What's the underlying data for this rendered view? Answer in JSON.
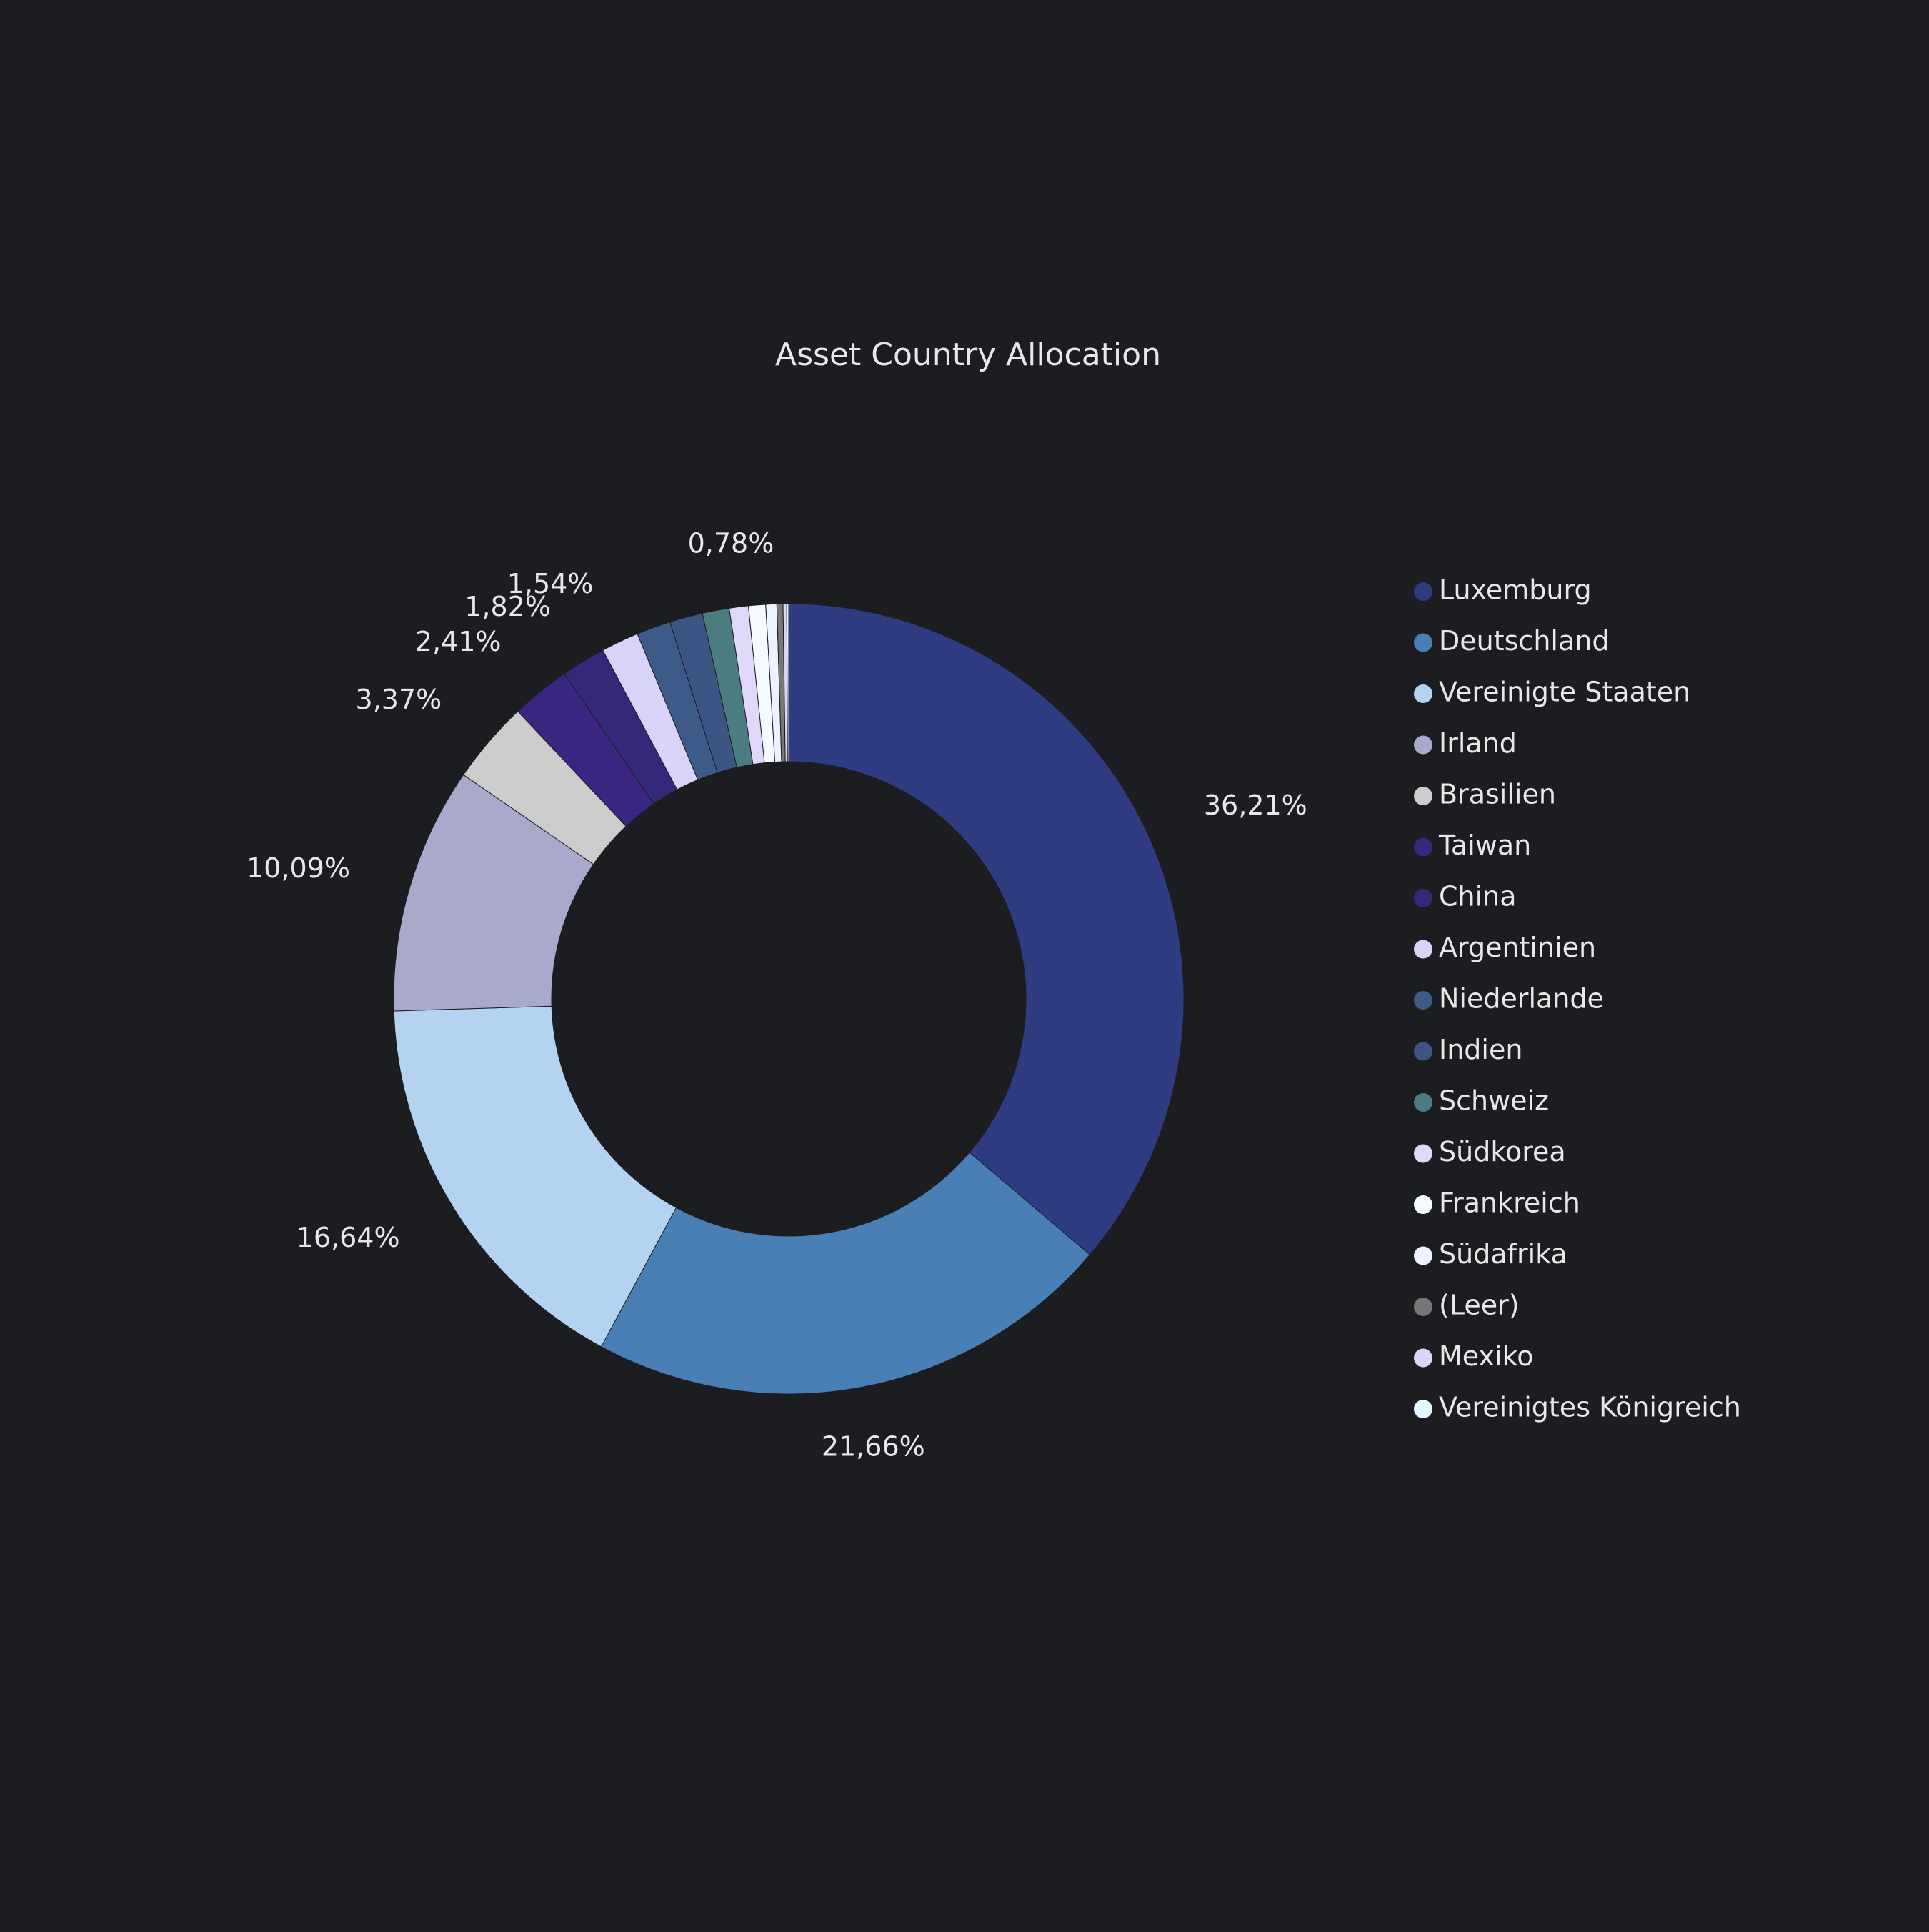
{
  "chart_data": {
    "type": "donut",
    "title": "Asset Country Allocation",
    "categories": [
      "Luxemburg",
      "Deutschland",
      "Vereinigte Staaten",
      "Irland",
      "Brasilien",
      "Taiwan",
      "China",
      "Argentinien",
      "Niederlande",
      "Indien",
      "Schweiz",
      "Südkorea",
      "Frankreich",
      "Südafrika",
      "(Leer)",
      "Mexiko",
      "Vereinigtes Königreich"
    ],
    "values": [
      36.21,
      21.66,
      16.64,
      10.09,
      3.37,
      2.41,
      1.82,
      1.54,
      1.4,
      1.35,
      1.1,
      0.78,
      0.7,
      0.45,
      0.25,
      0.15,
      0.08
    ],
    "value_labels": [
      "36,21%",
      "21,66%",
      "16,64%",
      "10,09%",
      "3,37%",
      "2,41%",
      "1,82%",
      "1,54%",
      null,
      null,
      null,
      "0,78%",
      null,
      null,
      null,
      null,
      null
    ],
    "colors": [
      "#2f3c82",
      "#4a7fb5",
      "#b3d3f0",
      "#a9a9cc",
      "#cccccc",
      "#3a2580",
      "#33287a",
      "#d8d4f8",
      "#3e5a88",
      "#3d5585",
      "#4a7c80",
      "#e0d8f8",
      "#f4faff",
      "#eef2ff",
      "#777777",
      "#dcd4fa",
      "#e6f6ff"
    ],
    "legend": "right"
  }
}
